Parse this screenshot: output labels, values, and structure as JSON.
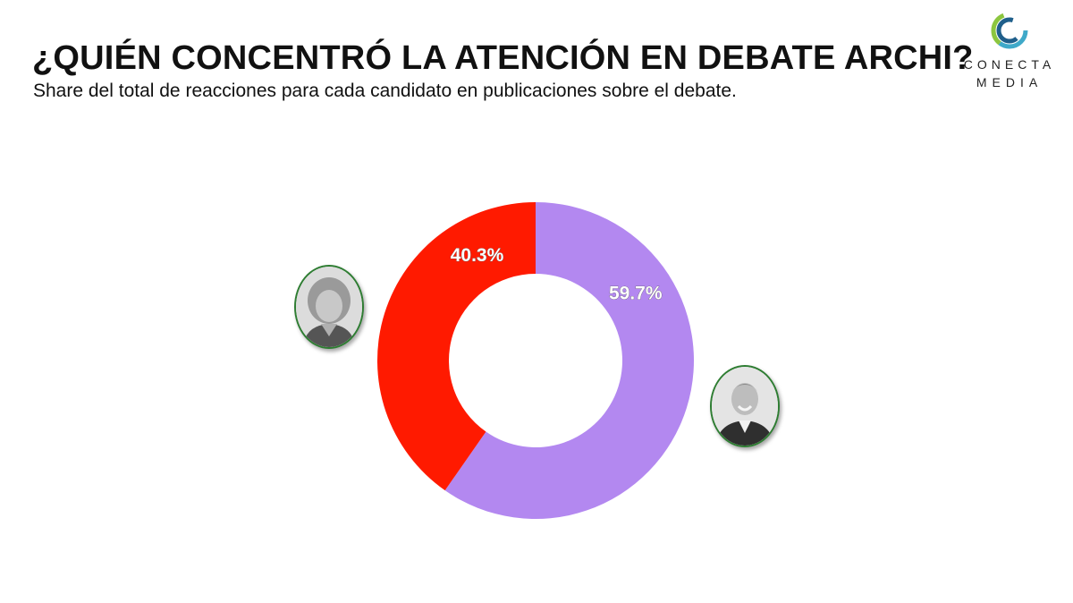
{
  "header": {
    "title": "¿QUIÉN CONCENTRÓ LA ATENCIÓN EN DEBATE ARCHI?",
    "subtitle": "Share del total de reacciones para cada candidato en publicaciones sobre el debate."
  },
  "logo": {
    "line1": "CONECTA",
    "line2": "MEDIA",
    "colors": [
      "#3fa9c9",
      "#8cc63f",
      "#1f5f8b"
    ]
  },
  "chart_data": {
    "type": "pie",
    "variant": "donut",
    "slices": [
      {
        "value": 59.7,
        "label": "59.7%",
        "color": "#b388f0"
      },
      {
        "value": 40.3,
        "label": "40.3%",
        "color": "#ff1a00"
      }
    ]
  },
  "avatars": [
    {
      "icon": "woman-portrait-icon",
      "slice": 1
    },
    {
      "icon": "man-portrait-icon",
      "slice": 0
    }
  ]
}
